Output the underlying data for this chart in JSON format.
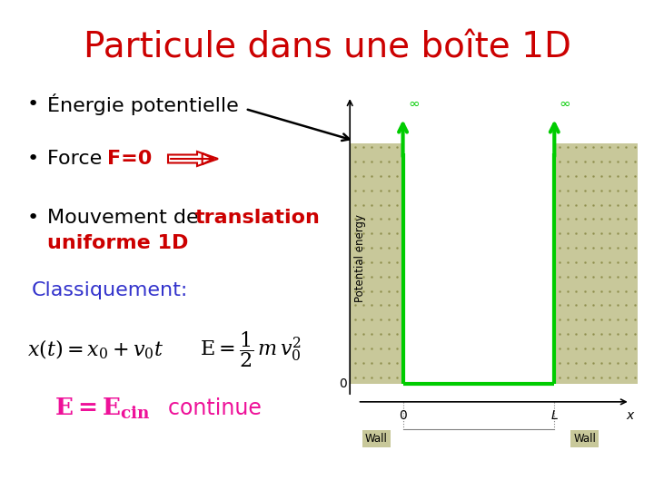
{
  "title": "Particule dans une boîte 1D",
  "title_color": "#cc0000",
  "title_fontsize": 28,
  "bg_color": "#ffffff",
  "bullet_fontsize": 16,
  "wall_color": "#c8c89a",
  "green_line_color": "#00cc00",
  "classique_color": "#3333cc",
  "ecin_color": "#ee1199",
  "pot_ylabel": "Potential energy",
  "wall_label": "Wall",
  "L_label": "L",
  "x_label": "x"
}
